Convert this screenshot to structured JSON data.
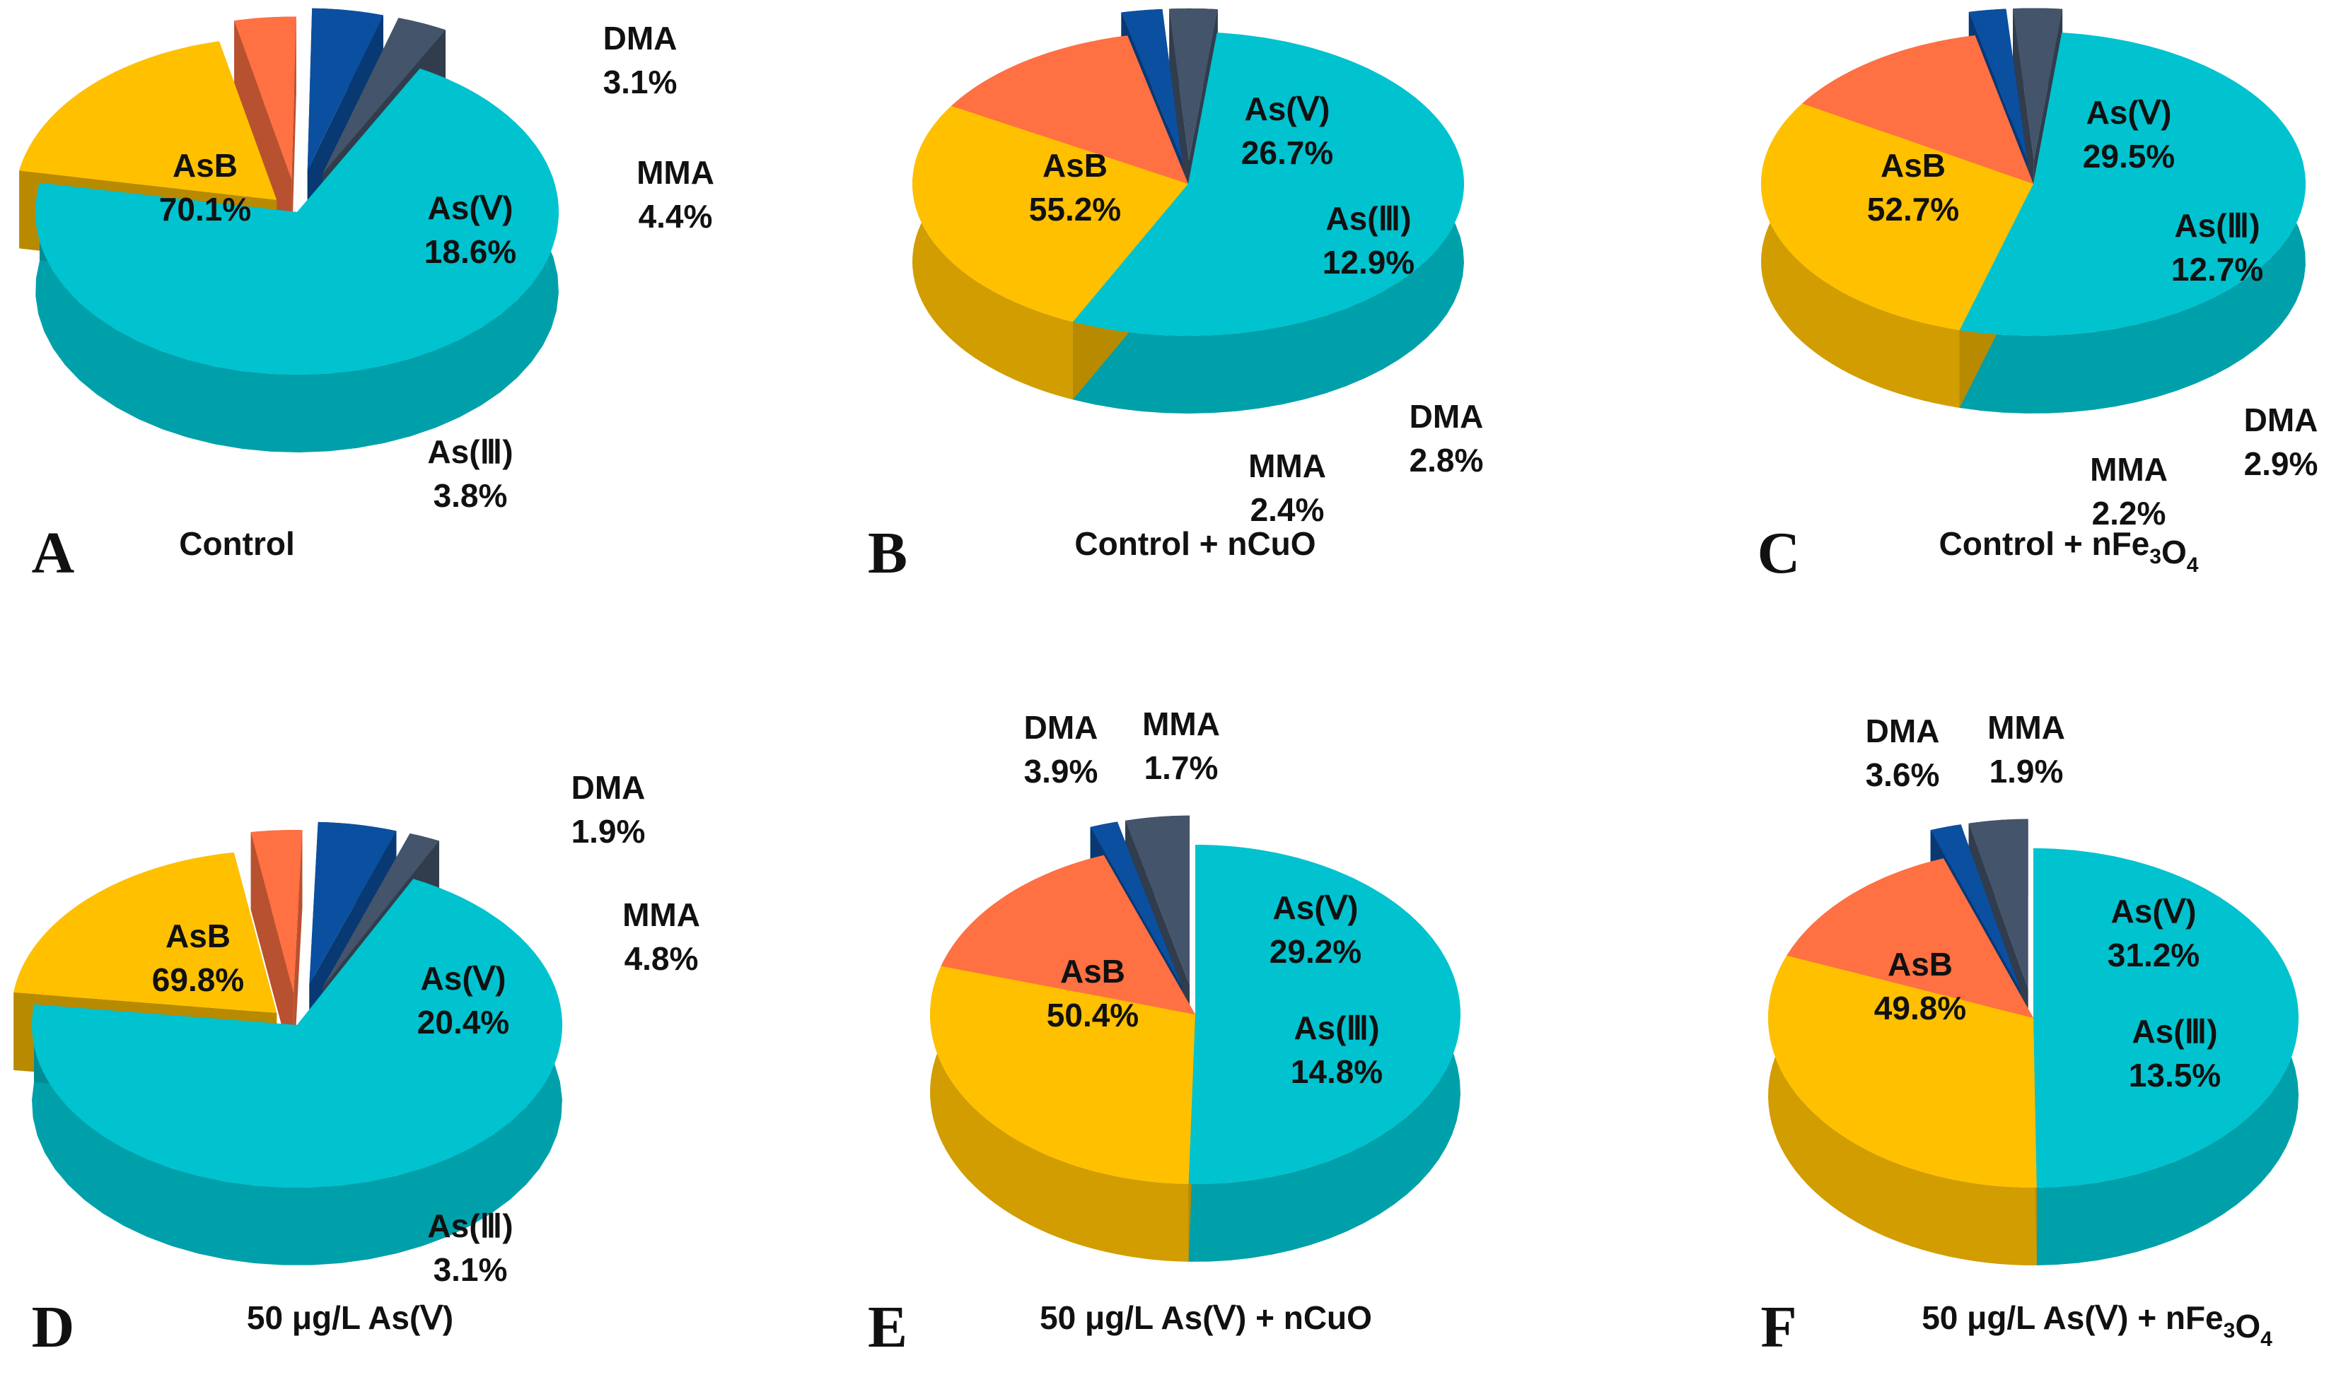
{
  "figure_title": "",
  "colors": {
    "AsB": "#00c3cf",
    "As(Ⅴ)": "#ffc000",
    "As(Ⅲ)": "#ff7043",
    "MMA": "#0b4fa0",
    "DMA": "#44546a"
  },
  "chart_data": [
    {
      "type": "pie",
      "letter": "A",
      "caption": {
        "main": "Control",
        "sub": "",
        "tail": ""
      },
      "slices": [
        {
          "name": "AsB",
          "value": 70.1,
          "label": "70.1%"
        },
        {
          "name": "As(Ⅴ)",
          "value": 18.6,
          "label": "18.6%"
        },
        {
          "name": "As(Ⅲ)",
          "value": 3.8,
          "label": "3.8%"
        },
        {
          "name": "MMA",
          "value": 4.4,
          "label": "4.4%"
        },
        {
          "name": "DMA",
          "value": 3.1,
          "label": "3.1%"
        }
      ]
    },
    {
      "type": "pie",
      "letter": "B",
      "caption": {
        "main": "Control + nCuO",
        "sub": "",
        "tail": ""
      },
      "slices": [
        {
          "name": "AsB",
          "value": 55.2,
          "label": "55.2%"
        },
        {
          "name": "As(Ⅴ)",
          "value": 26.7,
          "label": "26.7%"
        },
        {
          "name": "As(Ⅲ)",
          "value": 12.9,
          "label": "12.9%"
        },
        {
          "name": "MMA",
          "value": 2.4,
          "label": "2.4%"
        },
        {
          "name": "DMA",
          "value": 2.8,
          "label": "2.8%"
        }
      ]
    },
    {
      "type": "pie",
      "letter": "C",
      "caption": {
        "main": "Control + nFe",
        "sub": "3",
        "tail": "O",
        "sub2": "4"
      },
      "slices": [
        {
          "name": "AsB",
          "value": 52.7,
          "label": "52.7%"
        },
        {
          "name": "As(Ⅴ)",
          "value": 29.5,
          "label": "29.5%"
        },
        {
          "name": "As(Ⅲ)",
          "value": 12.7,
          "label": "12.7%"
        },
        {
          "name": "MMA",
          "value": 2.2,
          "label": "2.2%"
        },
        {
          "name": "DMA",
          "value": 2.9,
          "label": "2.9%"
        }
      ]
    },
    {
      "type": "pie",
      "letter": "D",
      "caption": {
        "main": "50 μg/L As(Ⅴ)",
        "sub": "",
        "tail": ""
      },
      "slices": [
        {
          "name": "AsB",
          "value": 69.8,
          "label": "69.8%"
        },
        {
          "name": "As(Ⅴ)",
          "value": 20.4,
          "label": "20.4%"
        },
        {
          "name": "As(Ⅲ)",
          "value": 3.1,
          "label": "3.1%"
        },
        {
          "name": "MMA",
          "value": 4.8,
          "label": "4.8%"
        },
        {
          "name": "DMA",
          "value": 1.9,
          "label": "1.9%"
        }
      ]
    },
    {
      "type": "pie",
      "letter": "E",
      "caption": {
        "main": "50 μg/L As(Ⅴ) + nCuO",
        "sub": "",
        "tail": ""
      },
      "slices": [
        {
          "name": "AsB",
          "value": 50.4,
          "label": "50.4%"
        },
        {
          "name": "As(Ⅴ)",
          "value": 29.2,
          "label": "29.2%"
        },
        {
          "name": "As(Ⅲ)",
          "value": 14.8,
          "label": "14.8%"
        },
        {
          "name": "MMA",
          "value": 1.7,
          "label": "1.7%"
        },
        {
          "name": "DMA",
          "value": 3.9,
          "label": "3.9%"
        }
      ]
    },
    {
      "type": "pie",
      "letter": "F",
      "caption": {
        "main": "50 μg/L As(Ⅴ) + nFe",
        "sub": "3",
        "tail": "O",
        "sub2": "4"
      },
      "slices": [
        {
          "name": "AsB",
          "value": 49.8,
          "label": "49.8%"
        },
        {
          "name": "As(Ⅴ)",
          "value": 31.2,
          "label": "31.2%"
        },
        {
          "name": "As(Ⅲ)",
          "value": 13.5,
          "label": "13.5%"
        },
        {
          "name": "MMA",
          "value": 1.9,
          "label": "1.9%"
        },
        {
          "name": "DMA",
          "value": 3.6,
          "label": "3.6%"
        }
      ]
    }
  ]
}
